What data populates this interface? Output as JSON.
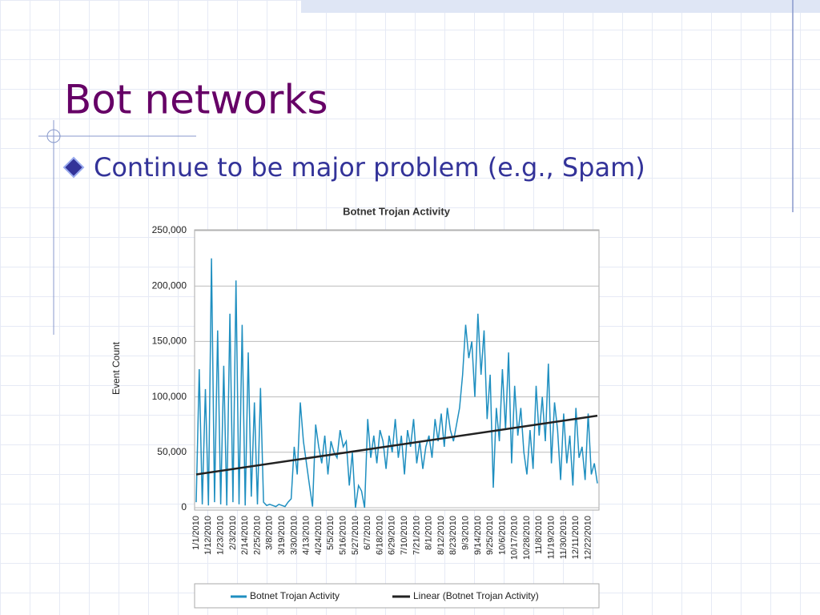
{
  "title": "Bot networks",
  "bullets": [
    "Continue to be major problem (e.g., Spam)"
  ],
  "chart_data": {
    "type": "line",
    "title": "Botnet Trojan Activity",
    "y_label": "Event Count",
    "categories": [
      "1/1/2010",
      null,
      null,
      null,
      "1/12/2010",
      null,
      null,
      null,
      "1/23/2010",
      null,
      null,
      null,
      "2/3/2010",
      null,
      null,
      null,
      "2/14/2010",
      null,
      null,
      null,
      "2/25/2010",
      null,
      null,
      null,
      "3/8/2010",
      null,
      null,
      null,
      "3/19/2010",
      null,
      null,
      null,
      "3/30/2010",
      null,
      null,
      null,
      "4/13/2010",
      null,
      null,
      null,
      "4/24/2010",
      null,
      null,
      null,
      "5/5/2010",
      null,
      null,
      null,
      "5/16/2010",
      null,
      null,
      null,
      "5/27/2010",
      null,
      null,
      null,
      "6/7/2010",
      null,
      null,
      null,
      "6/18/2010",
      null,
      null,
      null,
      "6/29/2010",
      null,
      null,
      null,
      "7/10/2010",
      null,
      null,
      null,
      "7/21/2010",
      null,
      null,
      null,
      "8/1/2010",
      null,
      null,
      null,
      "8/12/2010",
      null,
      null,
      null,
      "8/23/2010",
      null,
      null,
      null,
      "9/3/2010",
      null,
      null,
      null,
      "9/14/2010",
      null,
      null,
      null,
      "9/25/2010",
      null,
      null,
      null,
      "10/6/2010",
      null,
      null,
      null,
      "10/17/2010",
      null,
      null,
      null,
      "10/28/2010",
      null,
      null,
      null,
      "11/8/2010",
      null,
      null,
      null,
      "11/19/2010",
      null,
      null,
      null,
      "11/30/2010",
      null,
      null,
      null,
      "12/11/2010",
      null,
      null,
      null,
      "12/22/2010",
      null,
      null,
      null
    ],
    "series": [
      {
        "name": "Botnet Trojan Activity",
        "color": "#1f8fc0",
        "values": [
          5000,
          125000,
          3000,
          107000,
          2000,
          225000,
          5000,
          160000,
          3000,
          128000,
          2000,
          175000,
          5000,
          205000,
          3000,
          165000,
          2000,
          140000,
          10000,
          95000,
          3000,
          108000,
          5000,
          2000,
          3000,
          2000,
          1000,
          3000,
          2000,
          1000,
          5000,
          8000,
          55000,
          30000,
          95000,
          60000,
          40000,
          20000,
          1000,
          75000,
          55000,
          40000,
          65000,
          30000,
          60000,
          50000,
          45000,
          70000,
          55000,
          60000,
          20000,
          50000,
          0,
          20000,
          15000,
          0,
          80000,
          45000,
          65000,
          40000,
          70000,
          60000,
          35000,
          65000,
          50000,
          80000,
          45000,
          65000,
          30000,
          70000,
          55000,
          80000,
          40000,
          60000,
          35000,
          55000,
          65000,
          45000,
          80000,
          60000,
          85000,
          55000,
          90000,
          70000,
          60000,
          75000,
          90000,
          120000,
          165000,
          135000,
          150000,
          100000,
          175000,
          120000,
          160000,
          80000,
          120000,
          18000,
          90000,
          60000,
          125000,
          70000,
          140000,
          40000,
          110000,
          65000,
          90000,
          50000,
          30000,
          70000,
          35000,
          110000,
          65000,
          100000,
          60000,
          130000,
          40000,
          95000,
          70000,
          25000,
          85000,
          40000,
          65000,
          20000,
          90000,
          45000,
          55000,
          25000,
          85000,
          30000,
          40000,
          22000
        ]
      }
    ],
    "trendline": {
      "name": "Linear (Botnet Trojan Activity)",
      "color": "#222222",
      "start": 30000,
      "end": 83000
    },
    "ylim": [
      0,
      250000
    ],
    "yticks": [
      {
        "value": 0,
        "label": "0"
      },
      {
        "value": 50000,
        "label": "50,000"
      },
      {
        "value": 100000,
        "label": "100,000"
      },
      {
        "value": 150000,
        "label": "150,000"
      },
      {
        "value": 200000,
        "label": "200,000"
      },
      {
        "value": 250000,
        "label": "250,000"
      }
    ],
    "grid": true,
    "legend": "bottom"
  }
}
